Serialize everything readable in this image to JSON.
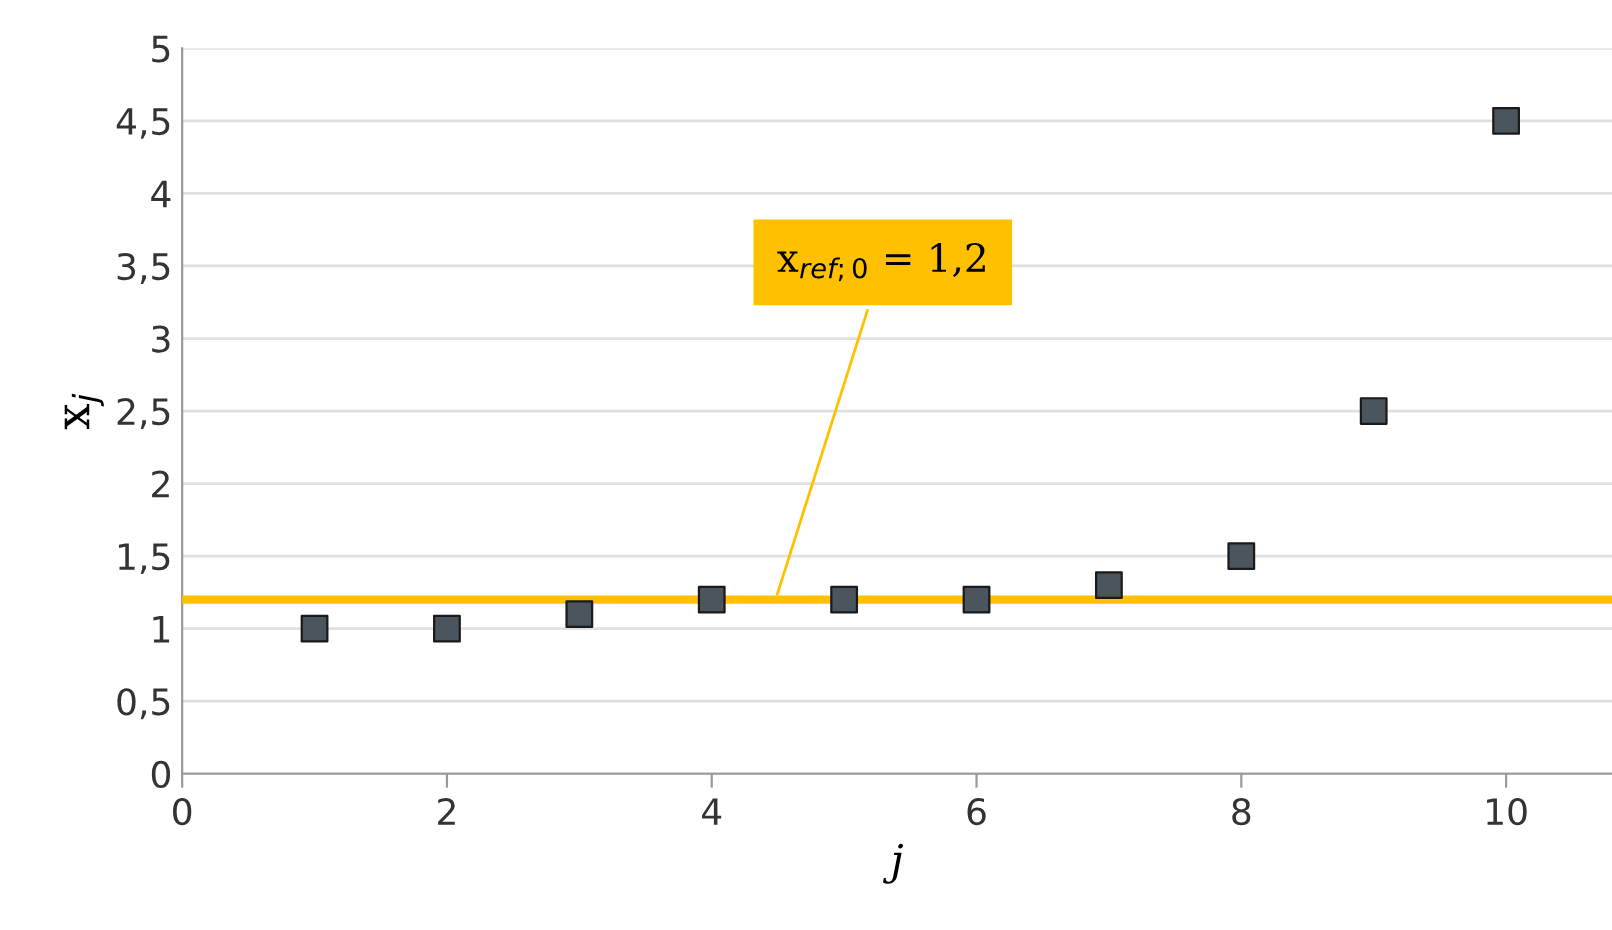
{
  "chart_data": {
    "type": "scatter",
    "xlabel": "j",
    "ylabel": "x$_{j}$",
    "x": [
      1,
      2,
      3,
      4,
      5,
      6,
      7,
      8,
      9,
      10
    ],
    "series": [
      {
        "color": "#4a555e",
        "values": [
          1,
          1,
          1.1,
          1.2,
          1.2,
          1.2,
          1.3,
          1.5,
          2.5,
          4.5
        ]
      }
    ],
    "marker": "square",
    "grid": "y",
    "legend": false,
    "xlim": [
      0,
      10.8
    ],
    "xticks": [
      0,
      2,
      4,
      6,
      8,
      10
    ],
    "ylim": [
      0,
      5
    ],
    "yticks": [
      0,
      {
        "value": 0.5,
        "label": "0,5"
      },
      1,
      {
        "value": 1.5,
        "label": "1,5"
      },
      2,
      {
        "value": 2.5,
        "label": "2,5"
      },
      3,
      {
        "value": 3.5,
        "label": "3,5"
      },
      4,
      {
        "value": 4.5,
        "label": "4,5"
      },
      5
    ],
    "ref_lines": [
      {
        "axis": "y",
        "value": 1.2,
        "label": "x$_{ref;0}$ = 1,2",
        "color": "#ffc000",
        "line_style": "solid"
      }
    ]
  }
}
